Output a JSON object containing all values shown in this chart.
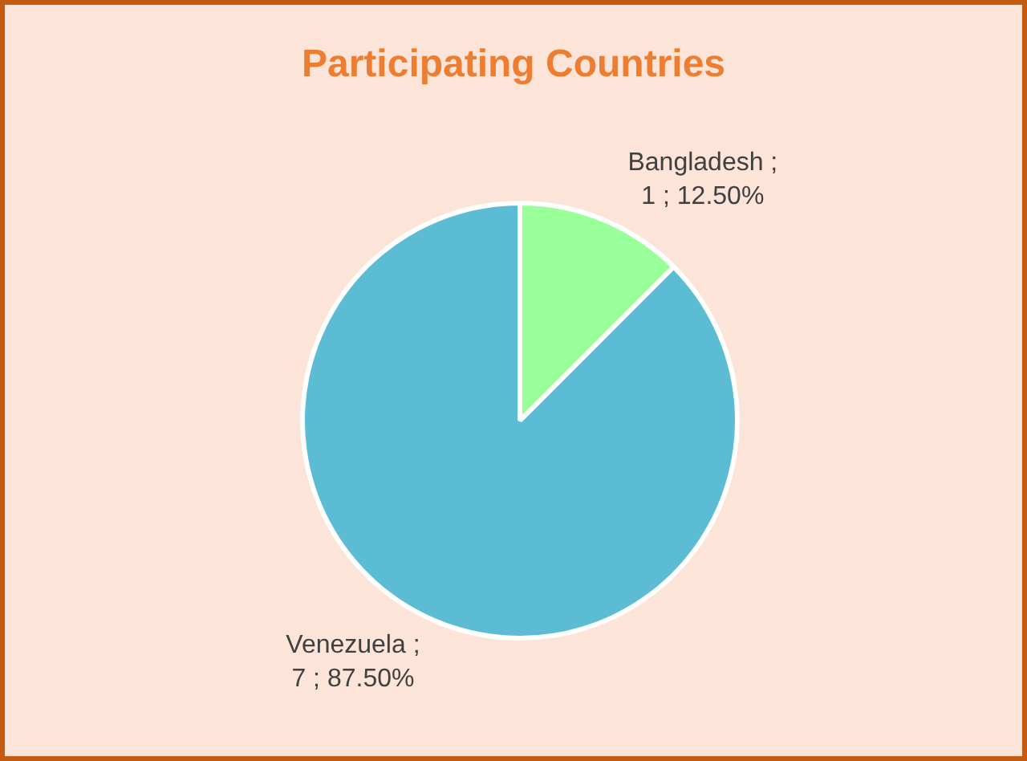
{
  "chart_data": {
    "type": "pie",
    "title": "Participating Countries",
    "categories": [
      "Bangladesh",
      "Venezuela"
    ],
    "values": [
      1,
      7
    ],
    "colors": [
      "#99ff99",
      "#5bbcd3"
    ],
    "value_labels": [
      "; 1 ; 12.50%",
      "; 7 ; 87.50%"
    ],
    "legend": false
  }
}
